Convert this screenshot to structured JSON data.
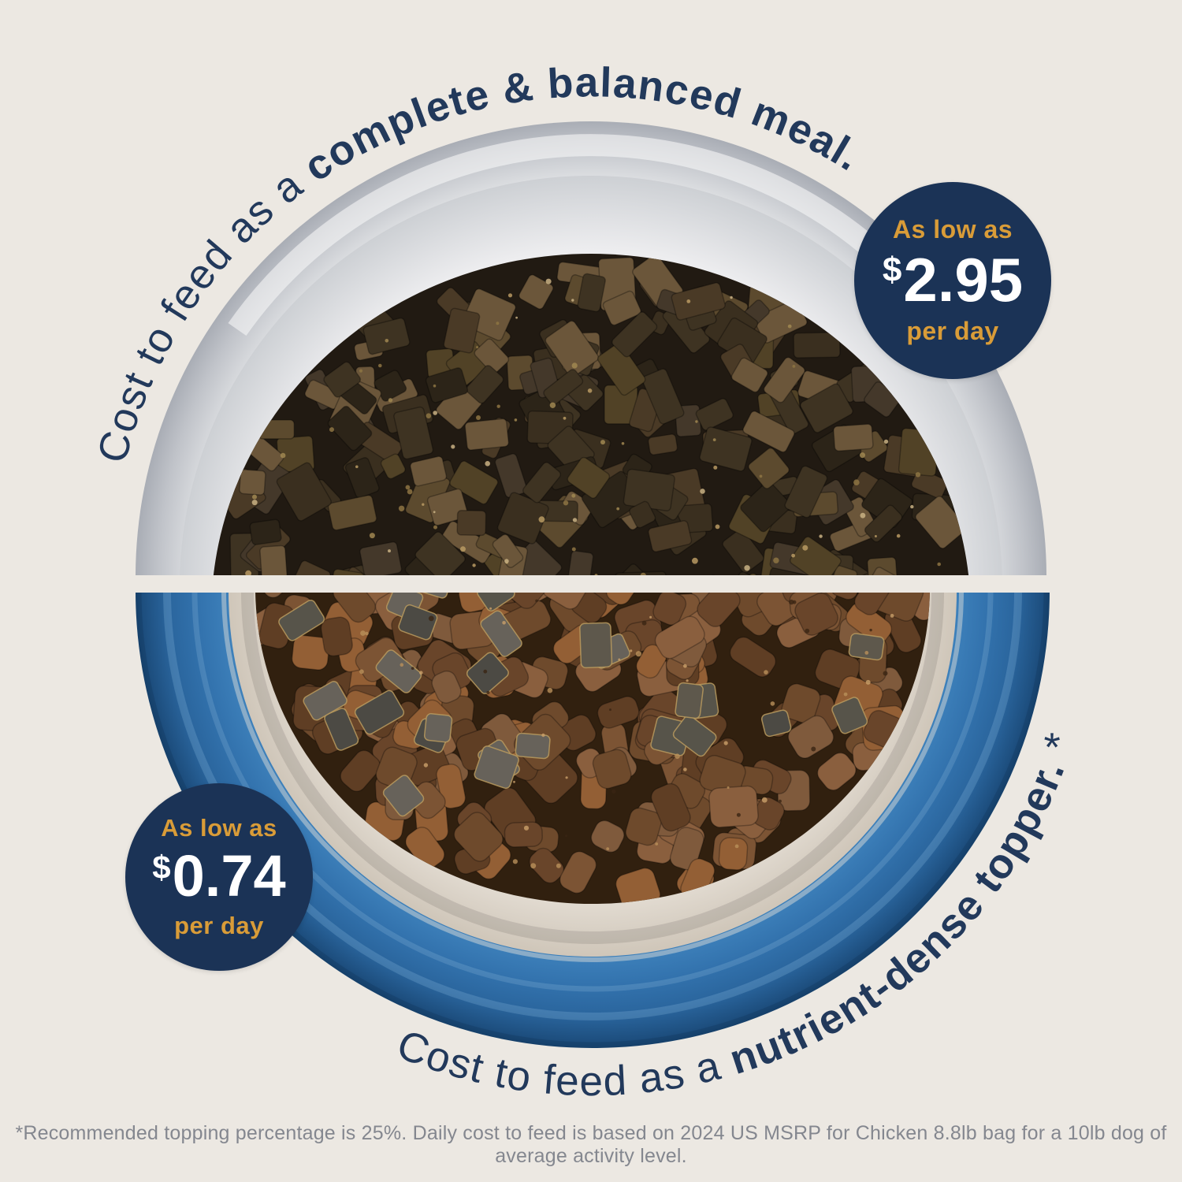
{
  "background_color": "#ECE8E2",
  "arc_top": {
    "prefix": "Cost to feed as a ",
    "emphasis": "complete & balanced meal."
  },
  "arc_bottom": {
    "prefix": "Cost to feed as a ",
    "emphasis": "nutrient-dense topper.",
    "suffix": " *"
  },
  "badge_top": {
    "intro": "As low as",
    "currency": "$",
    "amount": "2.95",
    "unit": "per day"
  },
  "badge_bottom": {
    "intro": "As low as",
    "currency": "$",
    "amount": "0.74",
    "unit": "per day"
  },
  "footnote": "*Recommended topping percentage is 25%. Daily cost to feed is based on 2024 US MSRP for Chicken 8.8lb bag for a 10lb dog of average activity level.",
  "colors": {
    "navy_text": "#22395B",
    "badge_navy": "#1B3356",
    "gold": "#D99C38",
    "price_white": "#FFFFFF",
    "bowl_blue": "#3373AE",
    "bowl_blue_dark": "#1B4A77",
    "bowl_grey": "#C6C9CE",
    "bowl_inner_cream": "#DAD2C6",
    "footnote_grey": "#84878F"
  }
}
